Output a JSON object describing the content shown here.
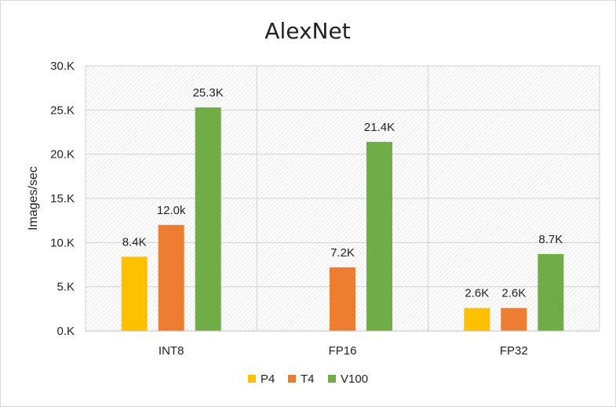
{
  "chart_data": {
    "type": "bar",
    "title": "AlexNet",
    "xlabel": "",
    "ylabel": "Images/sec",
    "ylim": [
      0,
      30
    ],
    "yticks": [
      "0.K",
      "5.K",
      "10.K",
      "15.K",
      "20.K",
      "25.K",
      "30.K"
    ],
    "ytick_values": [
      0,
      5,
      10,
      15,
      20,
      25,
      30
    ],
    "categories": [
      "INT8",
      "FP16",
      "FP32"
    ],
    "series": [
      {
        "name": "P4",
        "color": "#ffc000",
        "values": [
          8.4,
          null,
          2.6
        ],
        "labels": [
          "8.4K",
          "",
          "2.6K"
        ]
      },
      {
        "name": "T4",
        "color": "#ed7d31",
        "values": [
          12.0,
          7.2,
          2.6
        ],
        "labels": [
          "12.0k",
          "7.2K",
          "2.6K"
        ]
      },
      {
        "name": "V100",
        "color": "#70ad47",
        "values": [
          25.3,
          21.4,
          8.7
        ],
        "labels": [
          "25.3K",
          "21.4K",
          "8.7K"
        ]
      }
    ],
    "grid": true,
    "legend_position": "bottom"
  }
}
